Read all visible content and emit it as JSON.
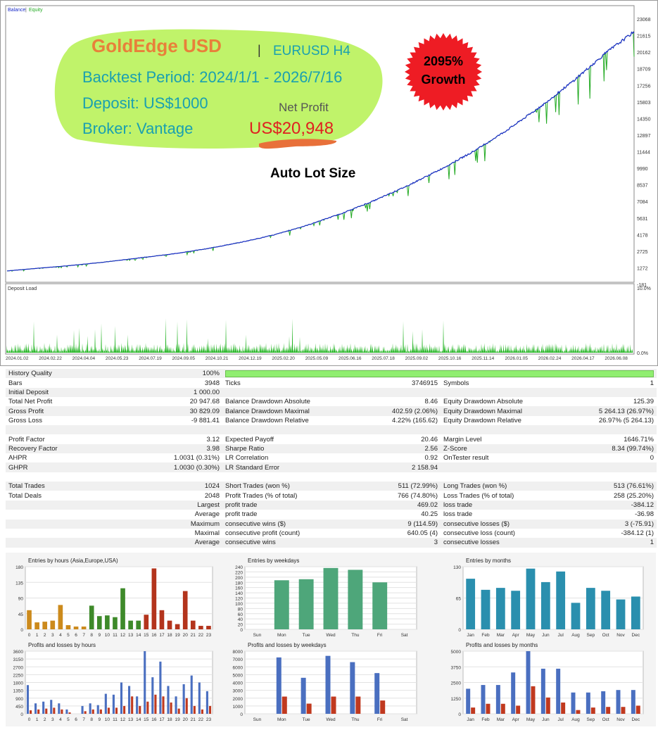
{
  "header": {
    "legend_balance": "Balance",
    "legend_equity": "Equity",
    "deposit_load_label": "Deposit Load",
    "load_max_label": "10.0%",
    "load_min_label": "0.0%"
  },
  "overlay": {
    "brand": "GoldEdge USD",
    "separator": "|",
    "pair": "EURUSD H4",
    "period": "Backtest Period: 2024/1/1 - 2026/7/16",
    "deposit": "Deposit: US$1000",
    "broker": "Broker: Vantage",
    "net_profit_label": "Net Profit",
    "net_profit_value": "US$20,948",
    "lot_size": "Auto Lot Size",
    "growth_pct": "2095%",
    "growth_label": "Growth"
  },
  "chart_data": [
    {
      "type": "line",
      "title": "",
      "series": [
        {
          "name": "Balance"
        },
        {
          "name": "Equity"
        }
      ],
      "y_ticks": [
        "23068",
        "21615",
        "20162",
        "18709",
        "17256",
        "15803",
        "14350",
        "12897",
        "11444",
        "9990",
        "8537",
        "7084",
        "5631",
        "4178",
        "2725",
        "1272",
        "-181"
      ],
      "x_ticks": [
        "2024.01.02",
        "2024.02.22",
        "2024.04.04",
        "2024.05.23",
        "2024.07.19",
        "2024.09.05",
        "2024.10.21",
        "2024.12.19",
        "2025.02.20",
        "2025.05.09",
        "2025.06.16",
        "2025.07.18",
        "2025.09.02",
        "2025.10.16",
        "2025.11.14",
        "2026.01.05",
        "2026.02.24",
        "2026.04.17",
        "2026.06.08"
      ],
      "ylim": [
        -181,
        23068
      ],
      "balance_points": [
        [
          0,
          1000
        ],
        [
          10,
          1250
        ],
        [
          20,
          1500
        ],
        [
          30,
          1800
        ],
        [
          40,
          2150
        ],
        [
          50,
          2500
        ],
        [
          60,
          2950
        ],
        [
          70,
          3500
        ],
        [
          80,
          4150
        ],
        [
          90,
          5000
        ],
        [
          100,
          6000
        ],
        [
          110,
          7150
        ],
        [
          120,
          8450
        ],
        [
          130,
          9900
        ],
        [
          140,
          11500
        ],
        [
          150,
          13350
        ],
        [
          160,
          15400
        ],
        [
          170,
          17700
        ],
        [
          180,
          20200
        ],
        [
          188,
          21950
        ]
      ]
    },
    {
      "type": "bar",
      "title": "Entries by hours (Asia,Europe,USA)",
      "categories": [
        "0",
        "1",
        "2",
        "3",
        "4",
        "5",
        "6",
        "7",
        "8",
        "9",
        "10",
        "11",
        "12",
        "13",
        "14",
        "15",
        "16",
        "17",
        "18",
        "19",
        "20",
        "21",
        "22",
        "23"
      ],
      "values": [
        55,
        20,
        22,
        25,
        70,
        12,
        8,
        8,
        68,
        38,
        40,
        35,
        118,
        25,
        25,
        42,
        175,
        55,
        25,
        15,
        110,
        25,
        10,
        10
      ],
      "ylim": [
        0,
        180
      ],
      "y_ticks": [
        0,
        45,
        90,
        135,
        180
      ]
    },
    {
      "type": "bar",
      "title": "Entries by weekdays",
      "categories": [
        "Sun",
        "Mon",
        "Tue",
        "Wed",
        "Thu",
        "Fri",
        "Sat"
      ],
      "values": [
        0,
        188,
        192,
        235,
        228,
        180,
        0
      ],
      "ylim": [
        0,
        240
      ],
      "y_ticks": [
        0,
        20,
        40,
        60,
        80,
        100,
        120,
        140,
        160,
        180,
        200,
        220,
        240
      ]
    },
    {
      "type": "bar",
      "title": "Entries by months",
      "categories": [
        "Jan",
        "Feb",
        "Mar",
        "Apr",
        "May",
        "Jun",
        "Jul",
        "Aug",
        "Sep",
        "Oct",
        "Nov",
        "Dec"
      ],
      "values": [
        105,
        82,
        86,
        80,
        126,
        98,
        120,
        55,
        86,
        80,
        62,
        68
      ],
      "ylim": [
        0,
        130
      ],
      "y_ticks": [
        0,
        65,
        130
      ]
    },
    {
      "type": "bar",
      "title": "Profits and losses by hours",
      "categories": [
        "0",
        "1",
        "2",
        "3",
        "4",
        "5",
        "6",
        "7",
        "8",
        "9",
        "10",
        "11",
        "12",
        "13",
        "14",
        "15",
        "16",
        "17",
        "18",
        "19",
        "20",
        "21",
        "22",
        "23"
      ],
      "series": [
        {
          "name": "Profit",
          "values": [
            1650,
            600,
            700,
            800,
            600,
            250,
            0,
            450,
            600,
            500,
            1150,
            1100,
            1800,
            1600,
            1000,
            3600,
            2100,
            3000,
            1600,
            1000,
            1700,
            2200,
            1800,
            1300
          ]
        },
        {
          "name": "Loss",
          "values": [
            200,
            250,
            300,
            350,
            250,
            80,
            0,
            150,
            250,
            250,
            350,
            350,
            450,
            1000,
            450,
            700,
            1100,
            1000,
            650,
            300,
            900,
            450,
            250,
            450
          ]
        }
      ],
      "ylim": [
        0,
        3600
      ],
      "y_ticks": [
        0,
        450,
        900,
        1350,
        1800,
        2250,
        2700,
        3150,
        3600
      ]
    },
    {
      "type": "bar",
      "title": "Profits and losses by weekdays",
      "categories": [
        "Sun",
        "Mon",
        "Tue",
        "Wed",
        "Thu",
        "Fri",
        "Sat"
      ],
      "series": [
        {
          "name": "Profit",
          "values": [
            0,
            7200,
            4600,
            7400,
            6600,
            5200,
            0
          ]
        },
        {
          "name": "Loss",
          "values": [
            0,
            2200,
            1300,
            2200,
            2200,
            1700,
            0
          ]
        }
      ],
      "ylim": [
        0,
        8000
      ],
      "y_ticks": [
        0,
        1000,
        2000,
        3000,
        4000,
        5000,
        6000,
        7000,
        8000
      ]
    },
    {
      "type": "bar",
      "title": "Profits and losses by months",
      "categories": [
        "Jan",
        "Feb",
        "Mar",
        "Apr",
        "May",
        "Jun",
        "Jul",
        "Aug",
        "Sep",
        "Oct",
        "Nov",
        "Dec"
      ],
      "series": [
        {
          "name": "Profit",
          "values": [
            2000,
            2300,
            2300,
            3300,
            5000,
            3600,
            3600,
            1700,
            1700,
            1800,
            1900,
            1900
          ]
        },
        {
          "name": "Loss",
          "values": [
            500,
            800,
            800,
            650,
            2200,
            1300,
            900,
            300,
            500,
            550,
            550,
            650
          ]
        }
      ],
      "ylim": [
        0,
        5000
      ],
      "y_ticks": [
        0,
        1250,
        2500,
        3750,
        5000
      ]
    }
  ],
  "stats": {
    "quality_label": "History Quality",
    "quality_value": "100%",
    "rows": [
      [
        "Bars",
        "3948",
        "Ticks",
        "3746915",
        "Symbols",
        "1"
      ],
      [
        "Initial Deposit",
        "1 000.00",
        "",
        "",
        "",
        ""
      ],
      [
        "Total Net Profit",
        "20 947.68",
        "Balance Drawdown Absolute",
        "8.46",
        "Equity Drawdown Absolute",
        "125.39"
      ],
      [
        "Gross Profit",
        "30 829.09",
        "Balance Drawdown Maximal",
        "402.59 (2.06%)",
        "Equity Drawdown Maximal",
        "5 264.13 (26.97%)"
      ],
      [
        "Gross Loss",
        "-9 881.41",
        "Balance Drawdown Relative",
        "4.22% (165.62)",
        "Equity Drawdown Relative",
        "26.97% (5 264.13)"
      ],
      [
        "",
        "",
        "",
        "",
        "",
        ""
      ],
      [
        "Profit Factor",
        "3.12",
        "Expected Payoff",
        "20.46",
        "Margin Level",
        "1646.71%"
      ],
      [
        "Recovery Factor",
        "3.98",
        "Sharpe Ratio",
        "2.56",
        "Z-Score",
        "8.34 (99.74%)"
      ],
      [
        "AHPR",
        "1.0031 (0.31%)",
        "LR Correlation",
        "0.92",
        "OnTester result",
        "0"
      ],
      [
        "GHPR",
        "1.0030 (0.30%)",
        "LR Standard Error",
        "2 158.94",
        "",
        ""
      ],
      [
        "",
        "",
        "",
        "",
        "",
        ""
      ],
      [
        "Total Trades",
        "1024",
        "Short Trades (won %)",
        "511 (72.99%)",
        "Long Trades (won %)",
        "513 (76.61%)"
      ],
      [
        "Total Deals",
        "2048",
        "Profit Trades (% of total)",
        "766 (74.80%)",
        "Loss Trades (% of total)",
        "258 (25.20%)"
      ],
      [
        "",
        "Largest",
        "profit trade",
        "469.02",
        "loss trade",
        "-384.12"
      ],
      [
        "",
        "Average",
        "profit trade",
        "40.25",
        "loss trade",
        "-36.98"
      ],
      [
        "",
        "Maximum",
        "consecutive wins ($)",
        "9 (114.59)",
        "consecutive losses ($)",
        "3 (-75.91)"
      ],
      [
        "",
        "Maximal",
        "consecutive profit (count)",
        "640.05 (4)",
        "consecutive loss (count)",
        "-384.12 (1)"
      ],
      [
        "",
        "Average",
        "consecutive wins",
        "3",
        "consecutive losses",
        "1"
      ]
    ]
  },
  "colors": {
    "balance": "#1a2bc8",
    "equity": "#22aa22",
    "load": "#22b422",
    "overlay_bg": "#c0f36a",
    "brand": "#e8803a",
    "teal_text": "#1aa0b0",
    "net_profit": "#e02020",
    "badge": "#ee1c24"
  }
}
